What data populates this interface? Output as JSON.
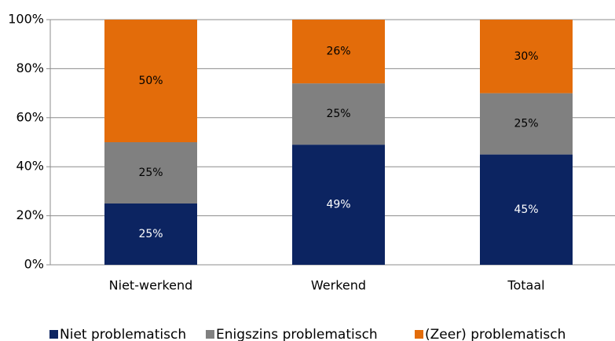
{
  "chart_data": {
    "type": "stacked-bar",
    "categories": [
      "Niet-werkend",
      "Werkend",
      "Totaal"
    ],
    "series": [
      {
        "name": "Niet problematisch",
        "color": "#0c2461",
        "values": [
          25,
          49,
          45
        ],
        "value_labels": [
          "25%",
          "49%",
          "45%"
        ]
      },
      {
        "name": "Enigszins problematisch",
        "color": "#808080",
        "values": [
          25,
          25,
          25
        ],
        "value_labels": [
          "25%",
          "25%",
          "25%"
        ]
      },
      {
        "name": "(Zeer) problematisch",
        "color": "#e36c0a",
        "values": [
          50,
          26,
          30
        ],
        "value_labels": [
          "50%",
          "26%",
          "30%"
        ]
      }
    ],
    "ylim": [
      0,
      100
    ],
    "yticks": [
      {
        "value": 0,
        "label": "0%"
      },
      {
        "value": 20,
        "label": "20%"
      },
      {
        "value": 40,
        "label": "40%"
      },
      {
        "value": 60,
        "label": "60%"
      },
      {
        "value": 80,
        "label": "80%"
      },
      {
        "value": 100,
        "label": "100%"
      }
    ],
    "grid": true,
    "legend": "bottom"
  }
}
